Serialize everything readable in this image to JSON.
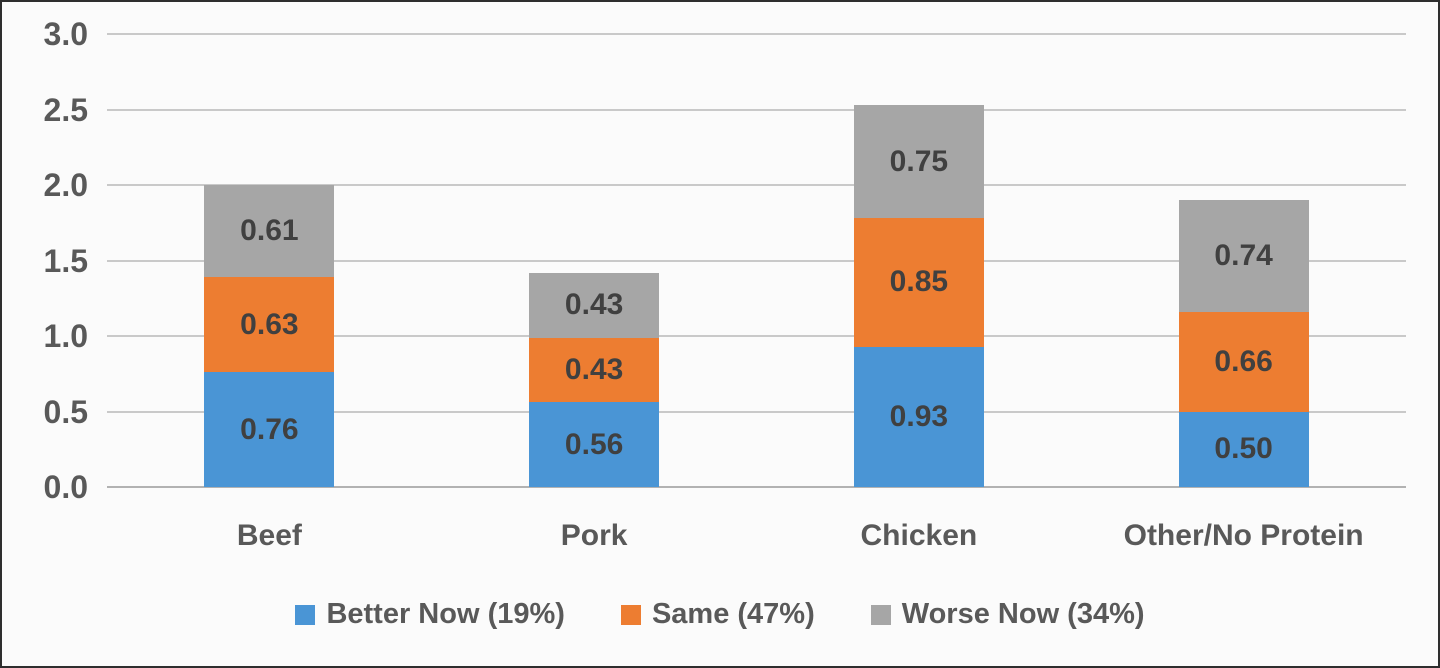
{
  "chart_data": {
    "type": "bar",
    "stacked": true,
    "title": "",
    "xlabel": "",
    "ylabel": "",
    "categories": [
      "Beef",
      "Pork",
      "Chicken",
      "Other/No Protein"
    ],
    "series": [
      {
        "name": "Better Now (19%)",
        "color": "#4A95D5",
        "values": [
          0.76,
          0.56,
          0.93,
          0.5
        ]
      },
      {
        "name": "Same (47%)",
        "color": "#ED7D31",
        "values": [
          0.63,
          0.43,
          0.85,
          0.66
        ]
      },
      {
        "name": "Worse Now (34%)",
        "color": "#A6A6A6",
        "values": [
          0.61,
          0.43,
          0.75,
          0.74
        ]
      }
    ],
    "ylim": [
      0,
      3
    ],
    "ytick_step": 0.5,
    "ytick_labels": [
      "0.0",
      "0.5",
      "1.0",
      "1.5",
      "2.0",
      "2.5",
      "3.0"
    ],
    "grid": true,
    "legend_position": "bottom",
    "value_labels": "inside-center, 2 decimals"
  },
  "style": {
    "background": "#fbfbfb",
    "border_color": "#2e2e2e",
    "gridline_color": "#c9c9c9",
    "axis_text_color": "#595959",
    "value_label_color": "#404040"
  }
}
